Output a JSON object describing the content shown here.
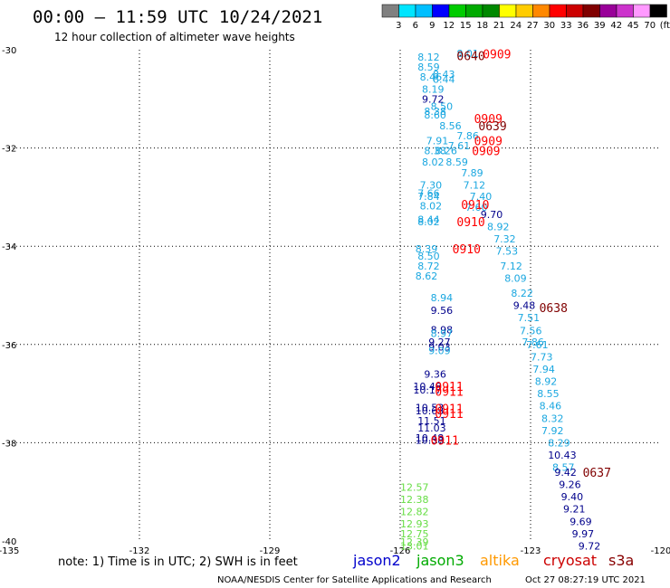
{
  "header": {
    "title": "00:00 – 11:59 UTC 10/24/2021",
    "subtitle": "12 hour collection of altimeter wave heights"
  },
  "colorbar": {
    "labels": [
      "3",
      "6",
      "9",
      "12",
      "15",
      "18",
      "21",
      "24",
      "27",
      "30",
      "33",
      "36",
      "39",
      "42",
      "45",
      "70",
      "(ft)"
    ],
    "colors": [
      "#808080",
      "#00e5ff",
      "#00bfff",
      "#0000ff",
      "#00cc00",
      "#00aa00",
      "#008800",
      "#ffff00",
      "#ffcc00",
      "#ff8800",
      "#ff0000",
      "#cc0000",
      "#800000",
      "#990099",
      "#cc33cc",
      "#ff99ff",
      "#000000"
    ]
  },
  "legend": {
    "note": "note: 1) Time is in UTC; 2) SWH is in feet",
    "missions": [
      {
        "label": "jason2",
        "color": "#0000cc"
      },
      {
        "label": "jason3",
        "color": "#00aa00"
      },
      {
        "label": "altika",
        "color": "#ff9900"
      },
      {
        "label": "cryosat",
        "color": "#cc0000"
      },
      {
        "label": "s3a",
        "color": "#880000"
      }
    ]
  },
  "footer": {
    "credit": "NOAA/NESDIS Center for Satellite Applications and Research",
    "generated": "Oct 27 08:27:19 UTC 2021"
  },
  "chart_data": {
    "type": "scatter",
    "xlim": [
      -135,
      -120
    ],
    "ylim": [
      -40,
      -30
    ],
    "xticks": [
      -135,
      -132,
      -129,
      -126,
      -123,
      -120
    ],
    "yticks": [
      -30,
      -32,
      -34,
      -36,
      -38,
      -40
    ],
    "grid": true,
    "points": [
      {
        "lon": -125.6,
        "lat": -30.15,
        "label": "8.12",
        "color": "#1aa7e0"
      },
      {
        "lon": -124.7,
        "lat": -30.07,
        "label": "8.01",
        "color": "#1aa7e0"
      },
      {
        "lon": -125.6,
        "lat": -30.35,
        "label": "8.59",
        "color": "#1aa7e0"
      },
      {
        "lon": -125.25,
        "lat": -30.5,
        "label": "8.43",
        "color": "#1aa7e0"
      },
      {
        "lon": -125.55,
        "lat": -30.55,
        "label": "8.46",
        "color": "#1aa7e0"
      },
      {
        "lon": -125.25,
        "lat": -30.6,
        "label": "8.44",
        "color": "#1aa7e0"
      },
      {
        "lon": -125.5,
        "lat": -30.8,
        "label": "8.19",
        "color": "#1aa7e0"
      },
      {
        "lon": -125.5,
        "lat": -31.0,
        "label": "9.72",
        "color": "#00008b"
      },
      {
        "lon": -125.3,
        "lat": -31.15,
        "label": "8.50",
        "color": "#1aa7e0"
      },
      {
        "lon": -125.45,
        "lat": -31.25,
        "label": "8.38",
        "color": "#1aa7e0"
      },
      {
        "lon": -125.45,
        "lat": -31.33,
        "label": "8.60",
        "color": "#1aa7e0"
      },
      {
        "lon": -125.1,
        "lat": -31.55,
        "label": "8.56",
        "color": "#1aa7e0"
      },
      {
        "lon": -124.7,
        "lat": -31.75,
        "label": "7.86",
        "color": "#1aa7e0"
      },
      {
        "lon": -125.4,
        "lat": -31.85,
        "label": "7.91",
        "color": "#1aa7e0"
      },
      {
        "lon": -124.9,
        "lat": -31.95,
        "label": "7.61",
        "color": "#1aa7e0"
      },
      {
        "lon": -125.45,
        "lat": -32.05,
        "label": "8.38",
        "color": "#1aa7e0"
      },
      {
        "lon": -125.2,
        "lat": -32.05,
        "label": "8.26",
        "color": "#1aa7e0"
      },
      {
        "lon": -125.5,
        "lat": -32.28,
        "label": "8.02",
        "color": "#1aa7e0"
      },
      {
        "lon": -124.95,
        "lat": -32.28,
        "label": "8.59",
        "color": "#1aa7e0"
      },
      {
        "lon": -124.6,
        "lat": -32.5,
        "label": "7.89",
        "color": "#1aa7e0"
      },
      {
        "lon": -125.55,
        "lat": -32.75,
        "label": "7.30",
        "color": "#1aa7e0"
      },
      {
        "lon": -124.55,
        "lat": -32.75,
        "label": "7.12",
        "color": "#1aa7e0"
      },
      {
        "lon": -125.6,
        "lat": -32.92,
        "label": "7.66",
        "color": "#1aa7e0"
      },
      {
        "lon": -125.6,
        "lat": -32.98,
        "label": "7.84",
        "color": "#1aa7e0"
      },
      {
        "lon": -124.4,
        "lat": -32.98,
        "label": "7.40",
        "color": "#1aa7e0"
      },
      {
        "lon": -125.55,
        "lat": -33.18,
        "label": "8.02",
        "color": "#1aa7e0"
      },
      {
        "lon": -124.5,
        "lat": -33.2,
        "label": "7.60",
        "color": "#1aa7e0"
      },
      {
        "lon": -124.15,
        "lat": -33.35,
        "label": "9.70",
        "color": "#00008b"
      },
      {
        "lon": -125.6,
        "lat": -33.45,
        "label": "8.44",
        "color": "#1aa7e0"
      },
      {
        "lon": -125.6,
        "lat": -33.5,
        "label": "8.02",
        "color": "#1aa7e0"
      },
      {
        "lon": -124.0,
        "lat": -33.6,
        "label": "8.92",
        "color": "#1aa7e0"
      },
      {
        "lon": -123.85,
        "lat": -33.85,
        "label": "7.32",
        "color": "#1aa7e0"
      },
      {
        "lon": -125.65,
        "lat": -34.05,
        "label": "8.39",
        "color": "#1aa7e0"
      },
      {
        "lon": -123.8,
        "lat": -34.1,
        "label": "7.53",
        "color": "#1aa7e0"
      },
      {
        "lon": -125.6,
        "lat": -34.2,
        "label": "8.50",
        "color": "#1aa7e0"
      },
      {
        "lon": -123.7,
        "lat": -34.4,
        "label": "7.12",
        "color": "#1aa7e0"
      },
      {
        "lon": -125.6,
        "lat": -34.4,
        "label": "8.72",
        "color": "#1aa7e0"
      },
      {
        "lon": -125.65,
        "lat": -34.6,
        "label": "8.62",
        "color": "#1aa7e0"
      },
      {
        "lon": -123.6,
        "lat": -34.65,
        "label": "8.09",
        "color": "#1aa7e0"
      },
      {
        "lon": -123.45,
        "lat": -34.95,
        "label": "8.22",
        "color": "#1aa7e0"
      },
      {
        "lon": -125.3,
        "lat": -35.05,
        "label": "8.94",
        "color": "#1aa7e0"
      },
      {
        "lon": -123.4,
        "lat": -35.2,
        "label": "9.48",
        "color": "#00008b"
      },
      {
        "lon": -125.3,
        "lat": -35.3,
        "label": "9.56",
        "color": "#00008b"
      },
      {
        "lon": -123.3,
        "lat": -35.45,
        "label": "7.51",
        "color": "#1aa7e0"
      },
      {
        "lon": -123.25,
        "lat": -35.72,
        "label": "7.56",
        "color": "#1aa7e0"
      },
      {
        "lon": -125.3,
        "lat": -35.7,
        "label": "8.98",
        "color": "#00008b"
      },
      {
        "lon": -125.3,
        "lat": -35.77,
        "label": "8.97",
        "color": "#1aa7e0"
      },
      {
        "lon": -125.35,
        "lat": -35.95,
        "label": "9.27",
        "color": "#00008b"
      },
      {
        "lon": -123.2,
        "lat": -35.95,
        "label": "7.86",
        "color": "#1aa7e0"
      },
      {
        "lon": -125.35,
        "lat": -36.05,
        "label": "9.03",
        "color": "#00008b"
      },
      {
        "lon": -125.35,
        "lat": -36.12,
        "label": "9.09",
        "color": "#1aa7e0"
      },
      {
        "lon": -123.1,
        "lat": -36.0,
        "label": "7.61",
        "color": "#1aa7e0"
      },
      {
        "lon": -123.0,
        "lat": -36.25,
        "label": "7.73",
        "color": "#1aa7e0"
      },
      {
        "lon": -122.95,
        "lat": -36.5,
        "label": "7.94",
        "color": "#1aa7e0"
      },
      {
        "lon": -125.45,
        "lat": -36.6,
        "label": "9.36",
        "color": "#00008b"
      },
      {
        "lon": -122.9,
        "lat": -36.75,
        "label": "8.92",
        "color": "#1aa7e0"
      },
      {
        "lon": -125.7,
        "lat": -36.85,
        "label": "10.48",
        "color": "#00008b"
      },
      {
        "lon": -125.7,
        "lat": -36.92,
        "label": "10.17",
        "color": "#00008b"
      },
      {
        "lon": -122.85,
        "lat": -37.0,
        "label": "8.55",
        "color": "#1aa7e0"
      },
      {
        "lon": -122.8,
        "lat": -37.25,
        "label": "8.46",
        "color": "#1aa7e0"
      },
      {
        "lon": -125.65,
        "lat": -37.28,
        "label": "10.53",
        "color": "#00008b"
      },
      {
        "lon": -125.65,
        "lat": -37.35,
        "label": "10.63",
        "color": "#00008b"
      },
      {
        "lon": -122.75,
        "lat": -37.5,
        "label": "8.32",
        "color": "#1aa7e0"
      },
      {
        "lon": -125.6,
        "lat": -37.55,
        "label": "11.51",
        "color": "#00008b"
      },
      {
        "lon": -122.75,
        "lat": -37.75,
        "label": "7.92",
        "color": "#1aa7e0"
      },
      {
        "lon": -125.6,
        "lat": -37.7,
        "label": "11.03",
        "color": "#00008b"
      },
      {
        "lon": -125.65,
        "lat": -37.9,
        "label": "10.48",
        "color": "#00008b"
      },
      {
        "lon": -125.65,
        "lat": -37.95,
        "label": "10.58",
        "color": "#00008b"
      },
      {
        "lon": -122.6,
        "lat": -38.0,
        "label": "8.29",
        "color": "#1aa7e0"
      },
      {
        "lon": -122.6,
        "lat": -38.25,
        "label": "10.43",
        "color": "#00008b"
      },
      {
        "lon": -122.5,
        "lat": -38.5,
        "label": "8.57",
        "color": "#1aa7e0"
      },
      {
        "lon": -122.45,
        "lat": -38.6,
        "label": "9.42",
        "color": "#00008b"
      },
      {
        "lon": -122.35,
        "lat": -38.85,
        "label": "9.26",
        "color": "#00008b"
      },
      {
        "lon": -122.3,
        "lat": -39.1,
        "label": "9.40",
        "color": "#00008b"
      },
      {
        "lon": -122.25,
        "lat": -39.35,
        "label": "9.21",
        "color": "#00008b"
      },
      {
        "lon": -122.1,
        "lat": -39.6,
        "label": "9.69",
        "color": "#00008b"
      },
      {
        "lon": -122.05,
        "lat": -39.85,
        "label": "9.97",
        "color": "#00008b"
      },
      {
        "lon": -121.9,
        "lat": -40.1,
        "label": "9.72",
        "color": "#00008b"
      },
      {
        "lon": -126.0,
        "lat": -38.9,
        "label": "12.57",
        "color": "#66dd44"
      },
      {
        "lon": -126.0,
        "lat": -39.15,
        "label": "12.38",
        "color": "#66dd44"
      },
      {
        "lon": -126.0,
        "lat": -39.4,
        "label": "12.82",
        "color": "#66dd44"
      },
      {
        "lon": -126.0,
        "lat": -39.65,
        "label": "12.93",
        "color": "#66dd44"
      },
      {
        "lon": -126.0,
        "lat": -39.85,
        "label": "12.75",
        "color": "#66dd44"
      },
      {
        "lon": -126.0,
        "lat": -40.02,
        "label": "12.39",
        "color": "#66dd44"
      },
      {
        "lon": -126.0,
        "lat": -40.1,
        "label": "13.01",
        "color": "#66dd44"
      }
    ],
    "time_labels": [
      {
        "lon": -124.7,
        "lat": -30.12,
        "label": "0640",
        "color": "#800000"
      },
      {
        "lon": -124.1,
        "lat": -30.08,
        "label": "0909",
        "color": "#ff0000"
      },
      {
        "lon": -124.3,
        "lat": -31.4,
        "label": "0909",
        "color": "#ff0000"
      },
      {
        "lon": -124.2,
        "lat": -31.55,
        "label": "0639",
        "color": "#800000"
      },
      {
        "lon": -124.3,
        "lat": -31.85,
        "label": "0909",
        "color": "#ff0000"
      },
      {
        "lon": -124.35,
        "lat": -32.05,
        "label": "0909",
        "color": "#ff0000"
      },
      {
        "lon": -124.6,
        "lat": -33.15,
        "label": "0910",
        "color": "#ff0000"
      },
      {
        "lon": -124.7,
        "lat": -33.5,
        "label": "0910",
        "color": "#ff0000"
      },
      {
        "lon": -124.8,
        "lat": -34.05,
        "label": "0910",
        "color": "#ff0000"
      },
      {
        "lon": -122.8,
        "lat": -35.25,
        "label": "0638",
        "color": "#800000"
      },
      {
        "lon": -125.2,
        "lat": -36.85,
        "label": "0911",
        "color": "#ff0000"
      },
      {
        "lon": -125.2,
        "lat": -36.95,
        "label": "0911",
        "color": "#ff0000"
      },
      {
        "lon": -125.2,
        "lat": -37.3,
        "label": "0911",
        "color": "#ff0000"
      },
      {
        "lon": -125.2,
        "lat": -37.4,
        "label": "0911",
        "color": "#ff0000"
      },
      {
        "lon": -125.3,
        "lat": -37.95,
        "label": "0911",
        "color": "#ff0000"
      },
      {
        "lon": -121.8,
        "lat": -38.6,
        "label": "0637",
        "color": "#800000"
      }
    ]
  }
}
